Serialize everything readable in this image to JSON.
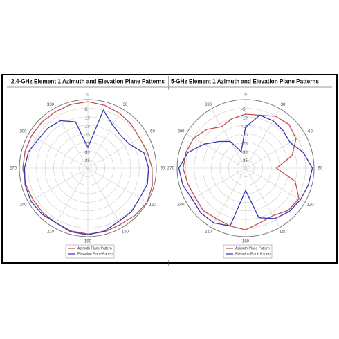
{
  "chart_data": [
    {
      "type": "polar",
      "title": "2.4-GHz Element 1 Azimuth and Elevation Plane Patterns",
      "theta": [
        0,
        15,
        30,
        45,
        60,
        75,
        90,
        105,
        120,
        135,
        150,
        165,
        180,
        195,
        210,
        225,
        240,
        255,
        270,
        285,
        300,
        315,
        330,
        345
      ],
      "series": [
        {
          "name": "Azimuth Plane Pattern",
          "color": "#c0504d",
          "values": [
            -1.2,
            -2,
            -3,
            -4,
            -5,
            -4,
            -2.5,
            -1,
            0,
            -1,
            -2,
            -1.5,
            -1.5,
            -2,
            -3,
            -3,
            -3,
            -2.5,
            -2,
            -2,
            -2,
            -2,
            -2,
            -1.5
          ]
        },
        {
          "name": "Elevation Plane Pattern",
          "color": "#3636b0",
          "values": [
            -28,
            -5,
            -11,
            -13,
            -12,
            -6,
            -4.5,
            -4,
            -5,
            -4,
            -4,
            -2,
            -1,
            -1.5,
            -3,
            -2,
            -1.5,
            -2,
            -3,
            -4,
            -6.5,
            -7,
            -8,
            -12
          ]
        }
      ],
      "rlim": [
        -40,
        0
      ],
      "rticks": [
        -35,
        -30,
        -25,
        -20,
        -15,
        -10,
        -5
      ],
      "thetaticks": [
        0,
        30,
        60,
        90,
        120,
        150,
        180,
        210,
        240,
        270,
        300,
        330
      ],
      "grid": true
    },
    {
      "type": "polar",
      "title": "5-GHz Element 1 Azimuth and Elevation Plane Patterns",
      "theta": [
        0,
        15,
        30,
        45,
        60,
        75,
        90,
        105,
        120,
        135,
        150,
        165,
        180,
        195,
        210,
        225,
        240,
        255,
        270,
        285,
        300,
        315,
        330,
        345
      ],
      "series": [
        {
          "name": "Azimuth Plane Pattern",
          "color": "#c0504d",
          "values": [
            -8.5,
            -8,
            -5,
            -4,
            -6,
            -12,
            -22,
            -10,
            -4,
            -5,
            -8,
            -7,
            -4,
            -5,
            -6,
            -5,
            -6,
            -5,
            -3.5,
            -4,
            -5,
            -8,
            -12,
            -10
          ]
        },
        {
          "name": "Elevation Plane Pattern",
          "color": "#3636b0",
          "values": [
            -16,
            -8,
            -8,
            -9,
            -10,
            -5,
            -1,
            -2,
            -3,
            -4,
            -6,
            -10,
            -27,
            -5,
            -3,
            -3,
            -4,
            -2,
            -1,
            -5,
            -12,
            -18,
            -22,
            -30
          ]
        }
      ],
      "rlim": [
        -40,
        0
      ],
      "rticks": [
        -35,
        -30,
        -25,
        -20,
        -15,
        -10,
        -5
      ],
      "thetaticks": [
        0,
        30,
        60,
        90,
        120,
        150,
        180,
        210,
        240,
        270,
        300,
        330
      ],
      "grid": true
    }
  ]
}
